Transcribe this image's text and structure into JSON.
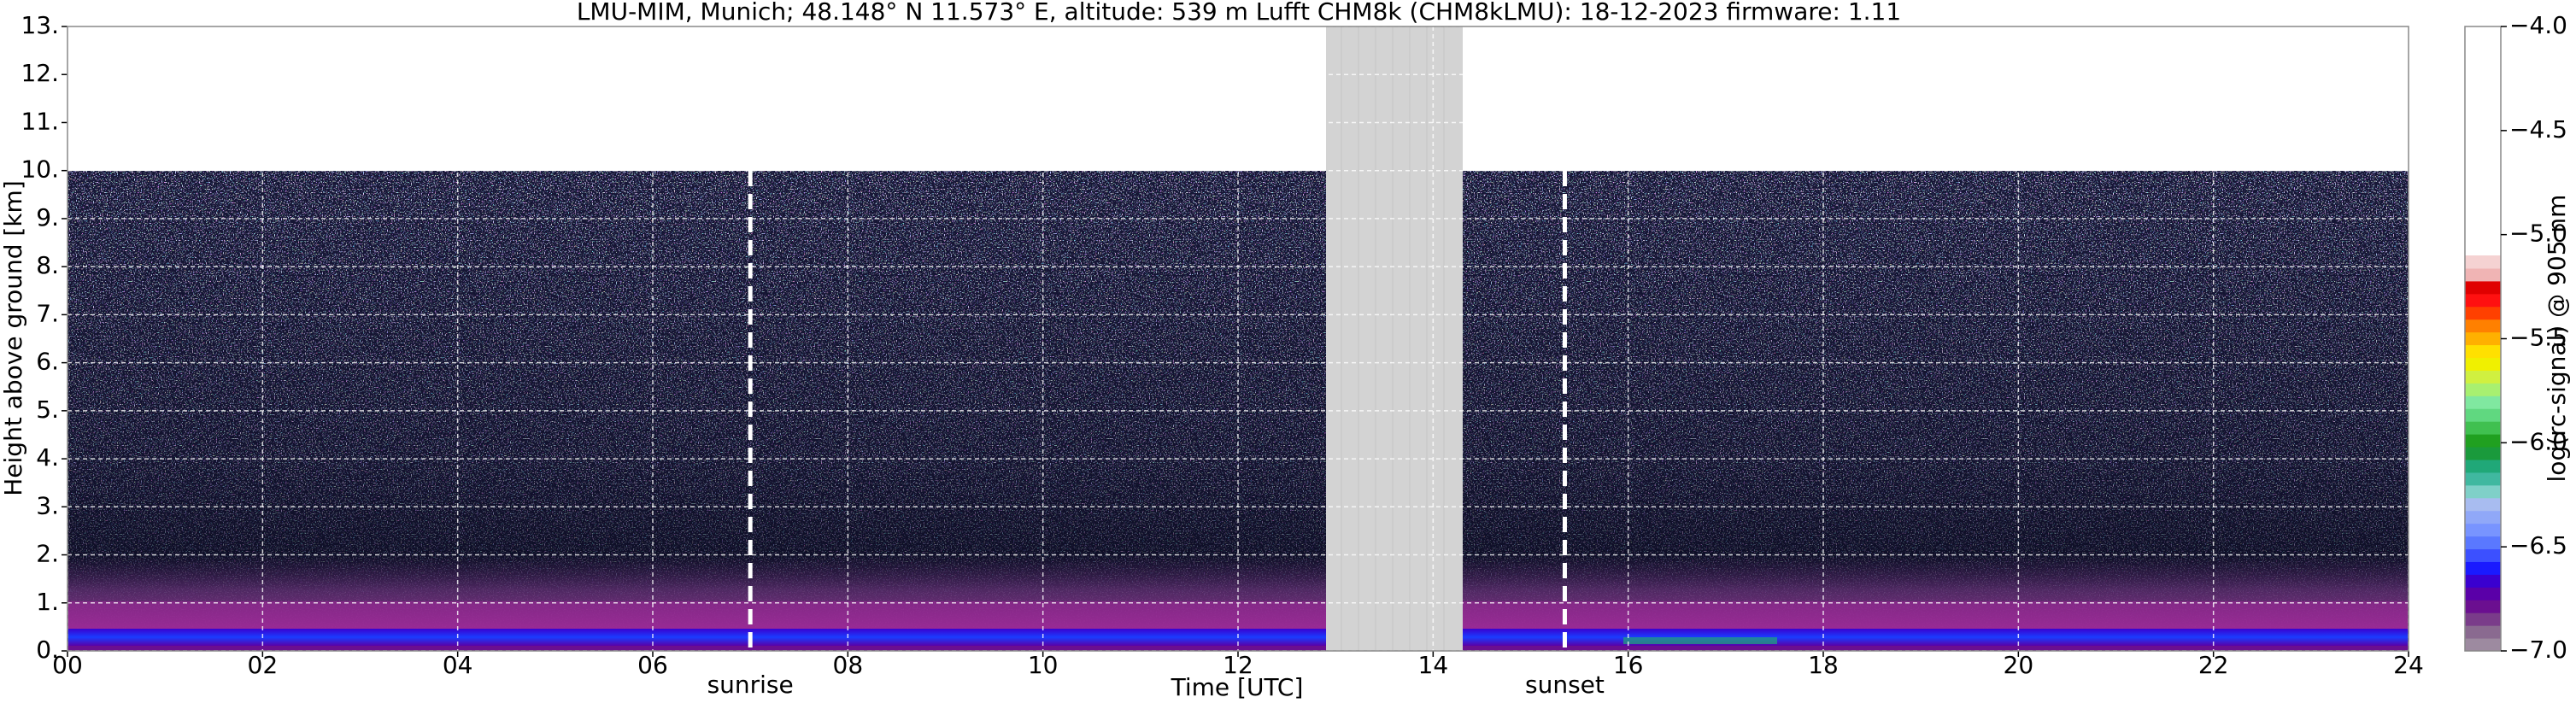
{
  "chart_data": {
    "type": "heatmap",
    "title": "LMU-MIM, Munich; 48.148° N 11.573° E, altitude: 539 m    Lufft CHM8k (CHM8kLMU): 18-12-2023    firmware: 1.11",
    "xlabel": "Time [UTC]",
    "ylabel": "Height above ground [km]",
    "xlim": [
      0,
      24
    ],
    "xticks": [
      {
        "value": 0,
        "label": "00"
      },
      {
        "value": 2,
        "label": "02"
      },
      {
        "value": 4,
        "label": "04"
      },
      {
        "value": 6,
        "label": "06"
      },
      {
        "value": 8,
        "label": "08"
      },
      10,
      12,
      14,
      16,
      18,
      20,
      22,
      24
    ],
    "ylim": [
      0,
      13
    ],
    "yticks": [
      {
        "value": 0,
        "label": "0."
      },
      {
        "value": 1,
        "label": "1."
      },
      {
        "value": 2,
        "label": "2."
      },
      {
        "value": 3,
        "label": "3."
      },
      {
        "value": 4,
        "label": "4."
      },
      {
        "value": 5,
        "label": "5."
      },
      {
        "value": 6,
        "label": "6."
      },
      {
        "value": 7,
        "label": "7."
      },
      {
        "value": 8,
        "label": "8."
      },
      {
        "value": 9,
        "label": "9."
      },
      {
        "value": 10,
        "label": "10."
      },
      {
        "value": 11,
        "label": "11."
      },
      {
        "value": 12,
        "label": "12."
      },
      {
        "value": 13,
        "label": "13."
      }
    ],
    "grid": true,
    "annotations": [
      {
        "text": "sunrise",
        "x": 7.0
      },
      {
        "text": "sunset",
        "x": 15.35
      }
    ],
    "colorbar": {
      "label": "log(rc-signal) @ 905 nm",
      "lim": [
        -7,
        -4
      ],
      "ticks": [
        {
          "value": -4,
          "label": "−4.0"
        },
        {
          "value": -4.5,
          "label": "−4.5"
        },
        {
          "value": -5,
          "label": "−5.0"
        },
        {
          "value": -5.5,
          "label": "−5.5"
        },
        {
          "value": -6,
          "label": "−6.0"
        },
        {
          "value": -6.5,
          "label": "−6.5"
        },
        {
          "value": -7,
          "label": "−7.0"
        }
      ],
      "color_range": [
        -7,
        -5.1
      ],
      "colors": [
        "#9d8aa0",
        "#8a6a90",
        "#7a3c8a",
        "#6b0f90",
        "#5a00a8",
        "#3a00d0",
        "#1a1aff",
        "#3c50ff",
        "#5a78ff",
        "#7894ff",
        "#90a8f8",
        "#a8bcf0",
        "#7fd0c8",
        "#40b8a0",
        "#20a878",
        "#1a9a3c",
        "#20a020",
        "#40c050",
        "#60d880",
        "#80e8a0",
        "#a8f070",
        "#d0f040",
        "#f0f000",
        "#ffe000",
        "#ffb000",
        "#ff8000",
        "#ff4000",
        "#ff1010",
        "#e00000",
        "#f0b4b4",
        "#f5d2d2"
      ]
    }
  }
}
